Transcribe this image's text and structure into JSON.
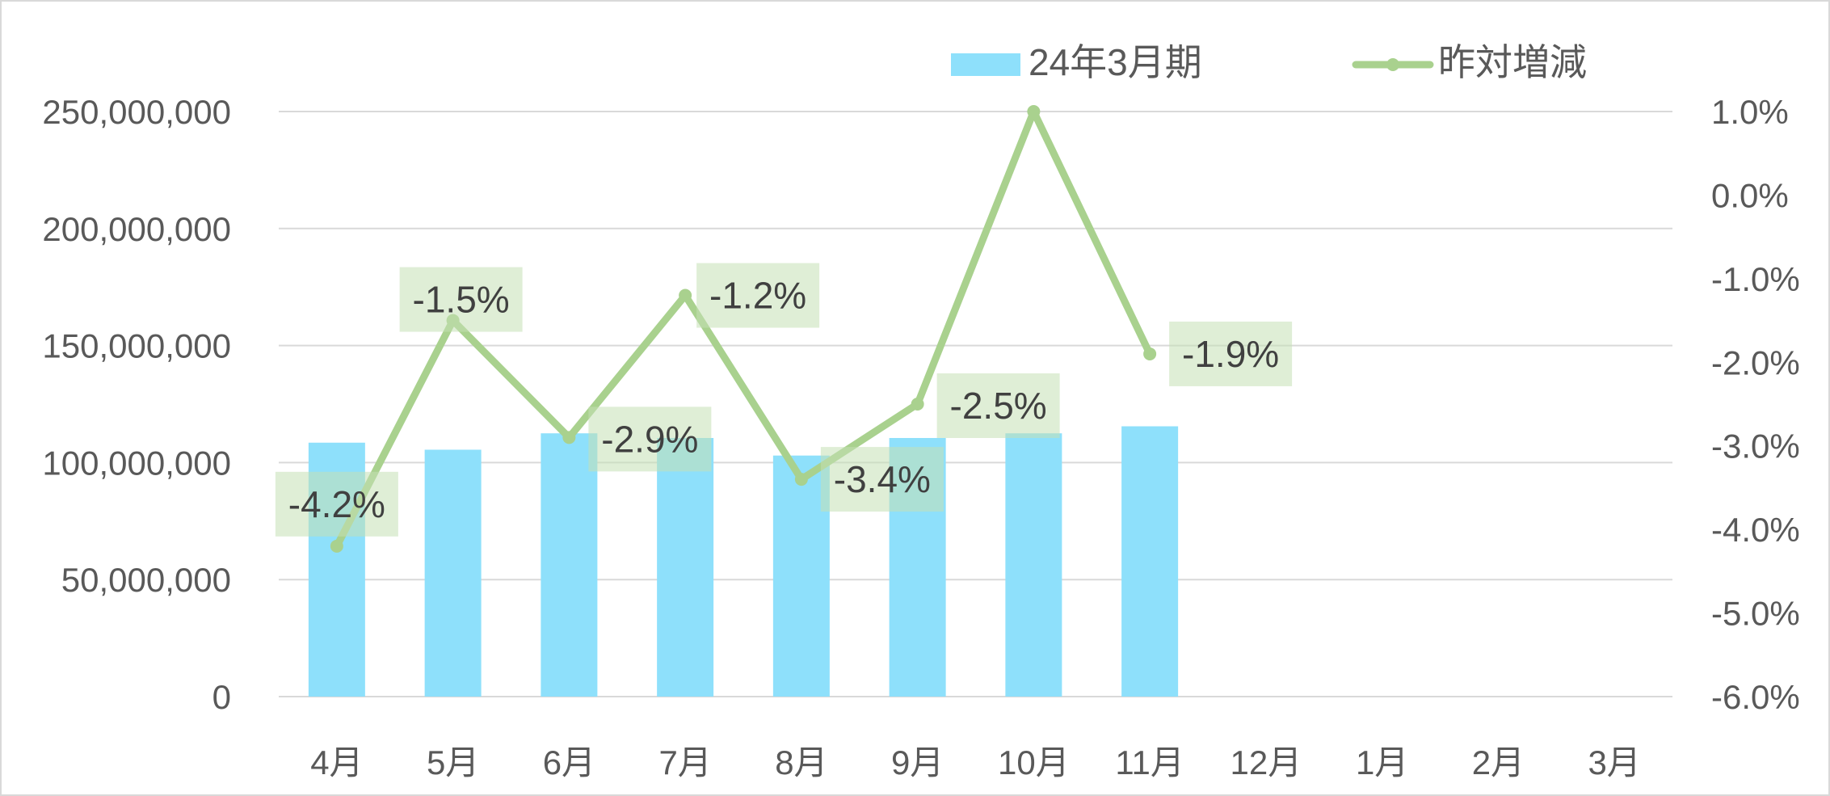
{
  "chart_data": {
    "type": "bar",
    "categories": [
      "4月",
      "5月",
      "6月",
      "7月",
      "8月",
      "9月",
      "10月",
      "11月",
      "12月",
      "1月",
      "2月",
      "3月"
    ],
    "series": [
      {
        "name": "24年3月期",
        "type": "bar",
        "axis": "left",
        "color": "#8ee0fb",
        "values": [
          108500000,
          105500000,
          112500000,
          110500000,
          103000000,
          110500000,
          112500000,
          115500000,
          null,
          null,
          null,
          null
        ]
      },
      {
        "name": "昨対増減",
        "type": "line",
        "axis": "right",
        "color": "#a9d18e",
        "values": [
          -4.2,
          -1.5,
          -2.9,
          -1.2,
          -3.4,
          -2.5,
          1.0,
          -1.9,
          null,
          null,
          null,
          null
        ],
        "data_labels": [
          "-4.2%",
          "-1.5%",
          "-2.9%",
          "-1.2%",
          "-3.4%",
          "-2.5%",
          null,
          "-1.9%",
          null,
          null,
          null,
          null
        ]
      }
    ],
    "y_left": {
      "min": 0,
      "max": 250000000,
      "ticks": [
        0,
        50000000,
        100000000,
        150000000,
        200000000,
        250000000
      ],
      "tick_labels": [
        "0",
        "50,000,000",
        "100,000,000",
        "150,000,000",
        "200,000,000",
        "250,000,000"
      ]
    },
    "y_right": {
      "min": -6.0,
      "max": 1.0,
      "unit": "%",
      "ticks": [
        -6.0,
        -5.0,
        -4.0,
        -3.0,
        -2.0,
        -1.0,
        0.0,
        1.0
      ],
      "tick_labels": [
        "-6.0%",
        "-5.0%",
        "-4.0%",
        "-3.0%",
        "-2.0%",
        "-1.0%",
        "0.0%",
        "1.0%"
      ]
    },
    "grid": true,
    "legend_position": "top",
    "title": "",
    "xlabel": "",
    "ylabel": ""
  }
}
